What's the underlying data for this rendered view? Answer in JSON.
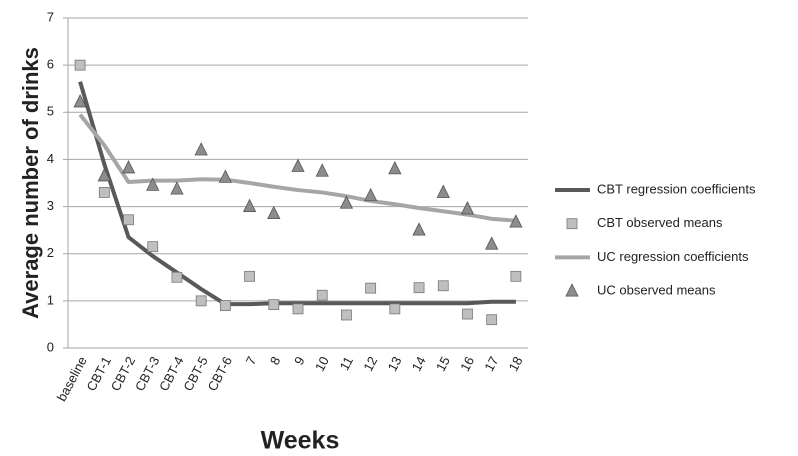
{
  "chart_data": {
    "type": "line",
    "x_label": "Weeks",
    "y_label": "Average number of drinks",
    "categories": [
      "baseline",
      "CBT-1",
      "CBT-2",
      "CBT-3",
      "CBT-4",
      "CBT-5",
      "CBT-6",
      "7",
      "8",
      "9",
      "10",
      "11",
      "12",
      "13",
      "14",
      "15",
      "16",
      "17",
      "18"
    ],
    "ylim": [
      0,
      7
    ],
    "yticks": [
      0,
      1,
      2,
      3,
      4,
      5,
      6,
      7
    ],
    "grid": true,
    "legend": "right",
    "series": [
      {
        "name": "CBT regression coefficients",
        "color": "#595959",
        "marker": "none",
        "values": [
          5.65,
          3.9,
          2.35,
          1.95,
          1.6,
          1.25,
          0.93,
          0.93,
          0.95,
          0.95,
          0.95,
          0.95,
          0.95,
          0.95,
          0.95,
          0.95,
          0.95,
          0.98,
          0.98
        ]
      },
      {
        "name": "CBT observed means",
        "color": "#bfbfbf",
        "marker": "square",
        "values": [
          6.0,
          3.3,
          2.72,
          2.15,
          1.5,
          1.0,
          0.9,
          1.52,
          0.92,
          0.83,
          1.12,
          0.7,
          1.27,
          0.83,
          1.28,
          1.32,
          0.72,
          0.6,
          1.52
        ]
      },
      {
        "name": "UC regression coefficients",
        "color": "#a6a6a6",
        "marker": "none",
        "values": [
          4.95,
          4.3,
          3.52,
          3.55,
          3.55,
          3.58,
          3.57,
          3.5,
          3.42,
          3.35,
          3.3,
          3.22,
          3.12,
          3.05,
          2.97,
          2.9,
          2.83,
          2.74,
          2.7
        ]
      },
      {
        "name": "UC observed means",
        "color": "#8c8c8c",
        "marker": "triangle",
        "values": [
          5.22,
          3.65,
          3.82,
          3.45,
          3.37,
          4.2,
          3.62,
          3.0,
          2.85,
          3.85,
          3.75,
          3.07,
          3.23,
          3.8,
          2.5,
          3.3,
          2.95,
          2.2,
          2.67
        ]
      }
    ]
  }
}
